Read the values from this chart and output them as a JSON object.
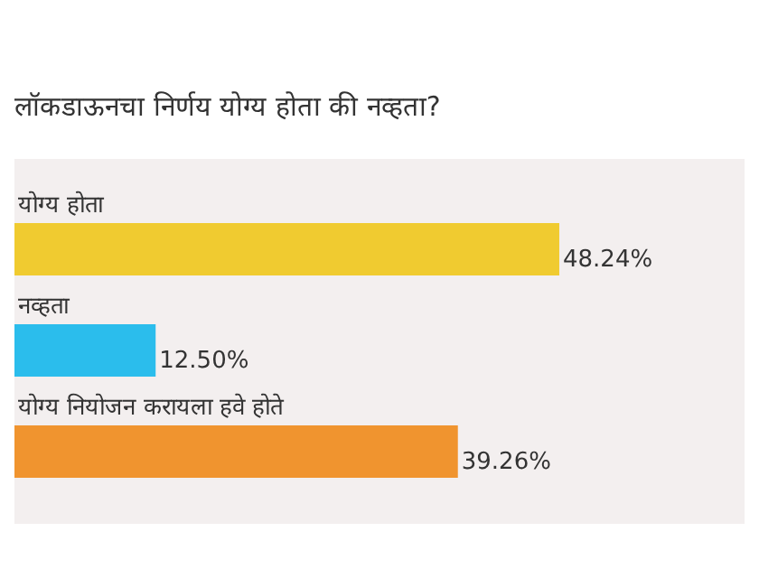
{
  "chart_data": {
    "type": "bar",
    "orientation": "horizontal",
    "title": "लॉकडाऊनचा निर्णय योग्य होता की नव्हता?",
    "categories": [
      "योग्य होता",
      "नव्हता",
      "योग्य नियोजन करायला हवे होते"
    ],
    "values": [
      48.24,
      12.5,
      39.26
    ],
    "value_labels": [
      "48.24%",
      "12.50%",
      "39.26%"
    ],
    "colors": [
      "#f0cb30",
      "#2bbdec",
      "#f0942f"
    ],
    "legend": false
  }
}
